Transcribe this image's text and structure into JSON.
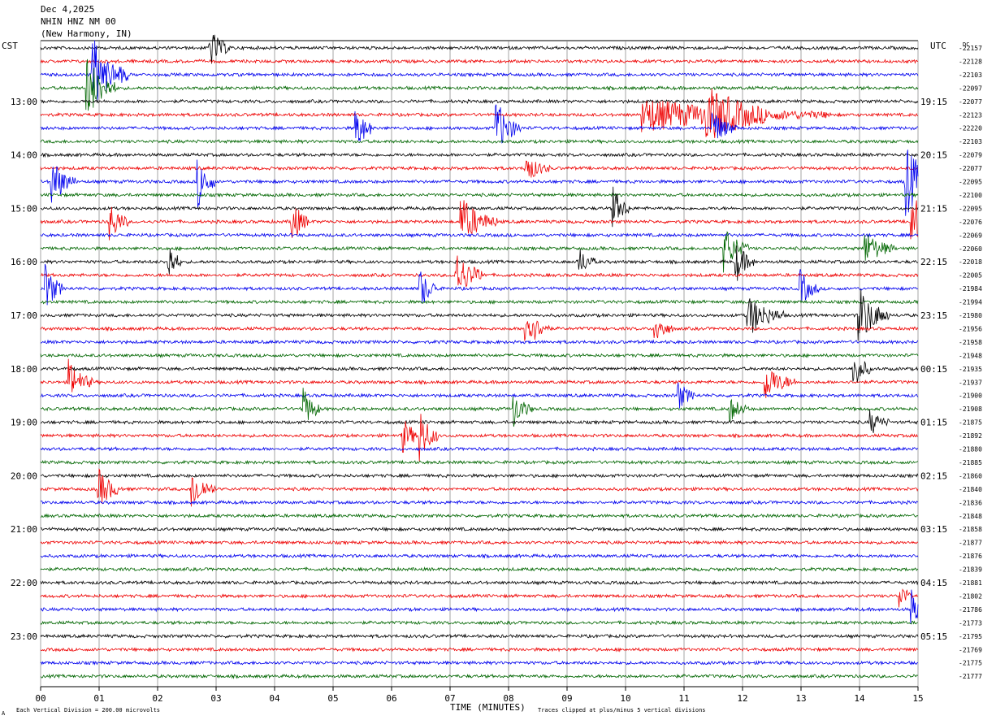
{
  "header": {
    "date": "Dec 4,2025",
    "station": "NHIN HNZ NM 00",
    "location": "(New Harmony, IN)"
  },
  "left_tz": "CST",
  "right_tz": "UTC",
  "dc_label": "DC",
  "footer": {
    "axis_label": "TIME (MINUTES)",
    "scale_note": "Each Vertical Division =  200.00 microvolts",
    "clip_note": "Traces clipped at plus/minus 5 vertical divisions",
    "corner_mark": "A"
  },
  "colors": {
    "trace_cycle": [
      "#000000",
      "#ee0000",
      "#0000ee",
      "#006600"
    ],
    "grid": "#808080"
  },
  "chart_data": {
    "type": "line",
    "title": "NHIN HNZ NM 00",
    "xlabel": "TIME (MINUTES)",
    "xlim": [
      0,
      15
    ],
    "x_ticks": [
      "00",
      "01",
      "02",
      "03",
      "04",
      "05",
      "06",
      "07",
      "08",
      "09",
      "10",
      "11",
      "12",
      "13",
      "14",
      "15"
    ],
    "minutes_per_trace": 15,
    "trace_count": 48,
    "left_hour_labels": [
      "13:00",
      "14:00",
      "15:00",
      "16:00",
      "17:00",
      "18:00",
      "19:00",
      "20:00",
      "21:00",
      "22:00",
      "23:00"
    ],
    "right_hour_labels": [
      "19:15",
      "20:15",
      "21:15",
      "22:15",
      "23:15",
      "00:15",
      "01:15",
      "02:15",
      "03:15",
      "04:15",
      "05:15"
    ],
    "dc_offsets": [
      "-22157",
      "-22128",
      "-22103",
      "-22097",
      "-22077",
      "-22123",
      "-22220",
      "-22103",
      "-22079",
      "-22077",
      "-22095",
      "-22100",
      "-22095",
      "-22076",
      "-22069",
      "-22060",
      "-22018",
      "-22005",
      "-21984",
      "-21994",
      "-21980",
      "-21956",
      "-21958",
      "-21948",
      "-21935",
      "-21937",
      "-21900",
      "-21908",
      "-21875",
      "-21892",
      "-21880",
      "-21885",
      "-21860",
      "-21840",
      "-21836",
      "-21848",
      "-21858",
      "-21877",
      "-21876",
      "-21839",
      "-21881",
      "-21802",
      "-21786",
      "-21773",
      "-21795",
      "-21769",
      "-21775",
      "-21777"
    ],
    "events": [
      {
        "trace": 0,
        "minute": 2.9,
        "amp": 1.6,
        "dur": 0.35
      },
      {
        "trace": 2,
        "minute": 0.9,
        "amp": 3.0,
        "dur": 0.6
      },
      {
        "trace": 3,
        "minute": 0.8,
        "amp": 2.6,
        "dur": 0.5
      },
      {
        "trace": 5,
        "minute": 10.3,
        "amp": 1.4,
        "dur": 3.2
      },
      {
        "trace": 5,
        "minute": 11.4,
        "amp": 1.9,
        "dur": 1.0
      },
      {
        "trace": 6,
        "minute": 7.8,
        "amp": 2.2,
        "dur": 0.4
      },
      {
        "trace": 6,
        "minute": 5.4,
        "amp": 1.8,
        "dur": 0.3
      },
      {
        "trace": 6,
        "minute": 11.5,
        "amp": 1.5,
        "dur": 0.4
      },
      {
        "trace": 9,
        "minute": 8.3,
        "amp": 1.2,
        "dur": 0.4
      },
      {
        "trace": 10,
        "minute": 0.2,
        "amp": 2.0,
        "dur": 0.4
      },
      {
        "trace": 10,
        "minute": 2.7,
        "amp": 2.0,
        "dur": 0.3
      },
      {
        "trace": 10,
        "minute": 14.8,
        "amp": 3.0,
        "dur": 0.6
      },
      {
        "trace": 12,
        "minute": 9.8,
        "amp": 1.6,
        "dur": 0.3
      },
      {
        "trace": 13,
        "minute": 1.2,
        "amp": 1.6,
        "dur": 0.3
      },
      {
        "trace": 13,
        "minute": 4.3,
        "amp": 1.8,
        "dur": 0.3
      },
      {
        "trace": 13,
        "minute": 7.2,
        "amp": 2.0,
        "dur": 0.6
      },
      {
        "trace": 13,
        "minute": 14.9,
        "amp": 2.6,
        "dur": 0.4
      },
      {
        "trace": 15,
        "minute": 11.7,
        "amp": 1.8,
        "dur": 0.4
      },
      {
        "trace": 15,
        "minute": 14.1,
        "amp": 1.4,
        "dur": 0.5
      },
      {
        "trace": 16,
        "minute": 2.2,
        "amp": 1.6,
        "dur": 0.2
      },
      {
        "trace": 16,
        "minute": 9.2,
        "amp": 1.2,
        "dur": 0.3
      },
      {
        "trace": 16,
        "minute": 11.9,
        "amp": 1.6,
        "dur": 0.3
      },
      {
        "trace": 17,
        "minute": 7.1,
        "amp": 2.0,
        "dur": 0.5
      },
      {
        "trace": 18,
        "minute": 6.5,
        "amp": 1.6,
        "dur": 0.3
      },
      {
        "trace": 18,
        "minute": 0.1,
        "amp": 1.8,
        "dur": 0.3
      },
      {
        "trace": 18,
        "minute": 13.0,
        "amp": 1.5,
        "dur": 0.3
      },
      {
        "trace": 20,
        "minute": 12.1,
        "amp": 1.8,
        "dur": 0.6
      },
      {
        "trace": 20,
        "minute": 14.0,
        "amp": 2.4,
        "dur": 0.5
      },
      {
        "trace": 21,
        "minute": 8.3,
        "amp": 1.8,
        "dur": 0.4
      },
      {
        "trace": 21,
        "minute": 10.5,
        "amp": 1.3,
        "dur": 0.3
      },
      {
        "trace": 24,
        "minute": 13.9,
        "amp": 1.6,
        "dur": 0.3
      },
      {
        "trace": 25,
        "minute": 0.5,
        "amp": 1.6,
        "dur": 0.4
      },
      {
        "trace": 25,
        "minute": 12.4,
        "amp": 1.5,
        "dur": 0.5
      },
      {
        "trace": 26,
        "minute": 10.9,
        "amp": 1.2,
        "dur": 0.3
      },
      {
        "trace": 27,
        "minute": 4.5,
        "amp": 1.6,
        "dur": 0.3
      },
      {
        "trace": 27,
        "minute": 8.1,
        "amp": 1.4,
        "dur": 0.3
      },
      {
        "trace": 27,
        "minute": 11.8,
        "amp": 1.0,
        "dur": 0.3
      },
      {
        "trace": 28,
        "minute": 14.2,
        "amp": 1.0,
        "dur": 0.3
      },
      {
        "trace": 29,
        "minute": 6.2,
        "amp": 1.4,
        "dur": 0.3
      },
      {
        "trace": 29,
        "minute": 6.5,
        "amp": 2.0,
        "dur": 0.3
      },
      {
        "trace": 33,
        "minute": 1.0,
        "amp": 1.6,
        "dur": 0.4
      },
      {
        "trace": 33,
        "minute": 2.6,
        "amp": 1.6,
        "dur": 0.4
      },
      {
        "trace": 41,
        "minute": 14.7,
        "amp": 1.0,
        "dur": 0.2
      },
      {
        "trace": 42,
        "minute": 14.9,
        "amp": 1.6,
        "dur": 0.3
      }
    ]
  }
}
